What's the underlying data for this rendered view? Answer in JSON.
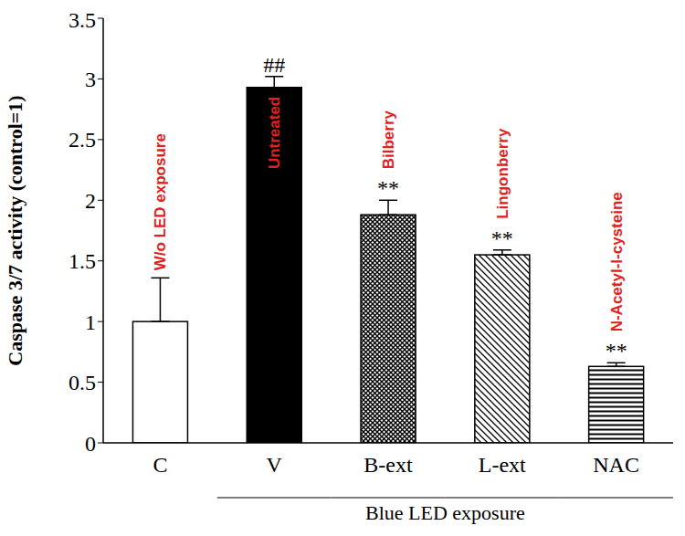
{
  "chart_data": {
    "type": "bar",
    "categories": [
      "C",
      "V",
      "B-ext",
      "L-ext",
      "NAC"
    ],
    "values": [
      1.0,
      2.93,
      1.88,
      1.55,
      0.63
    ],
    "errors": [
      0.36,
      0.09,
      0.12,
      0.04,
      0.03
    ],
    "colors": [
      "#ffffff",
      "#000000",
      "#000000",
      "#000000",
      "#000000"
    ],
    "ylabel": "Caspase 3/7 activity (control=1)",
    "ylim": [
      0,
      3.5
    ],
    "yticks": [
      0,
      0.5,
      1,
      1.5,
      2,
      2.5,
      3,
      3.5
    ],
    "bar_annotations": [
      "W/o LED exposure",
      "Untreated",
      "Bilberry",
      "Lingonberry",
      "N-Acetyl-l-cysteine"
    ],
    "significance": [
      null,
      "##",
      "**",
      "**",
      "**"
    ],
    "group_label": "Blue LED exposure",
    "group_categories": [
      "V",
      "B-ext",
      "L-ext",
      "NAC"
    ],
    "grid": false
  }
}
